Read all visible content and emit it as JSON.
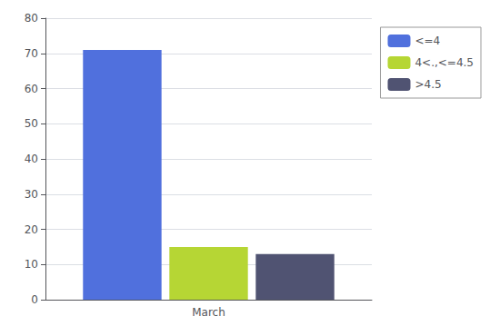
{
  "chart_data": {
    "type": "bar",
    "categories": [
      "March"
    ],
    "series": [
      {
        "name": "<=4",
        "values": [
          71
        ]
      },
      {
        "name": "4<.,<=4.5",
        "values": [
          15
        ]
      },
      {
        "name": ">4.5",
        "values": [
          13
        ]
      }
    ],
    "ylim": [
      0,
      80
    ],
    "yticks": [
      0,
      10,
      20,
      30,
      40,
      50,
      60,
      70,
      80
    ],
    "grid": true,
    "legend": "upper right"
  }
}
